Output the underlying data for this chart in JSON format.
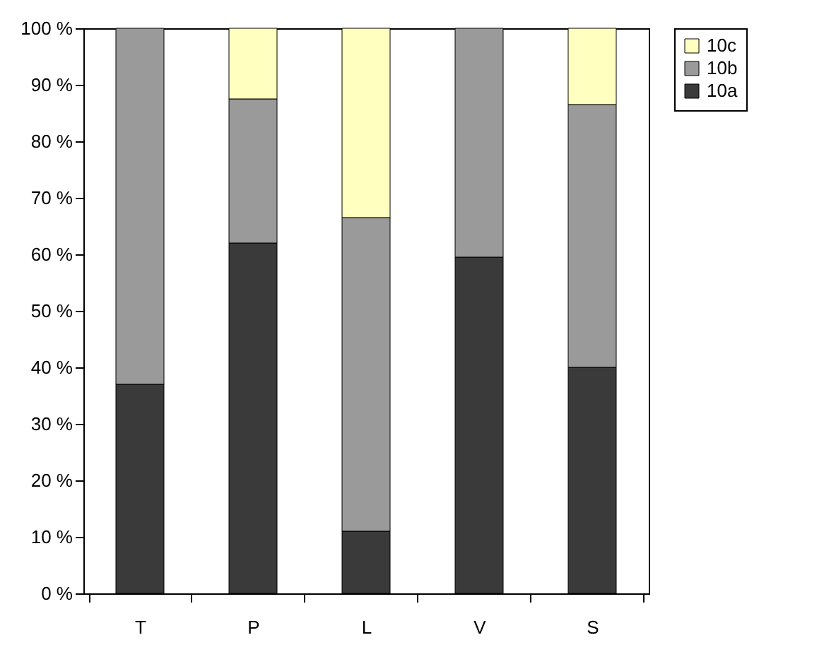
{
  "chart_data": {
    "type": "bar",
    "stacked": true,
    "categories": [
      "T",
      "P",
      "L",
      "V",
      "S"
    ],
    "series": [
      {
        "name": "10a",
        "color": "#3a3a3a",
        "values": [
          37,
          62,
          11,
          59.5,
          40
        ]
      },
      {
        "name": "10b",
        "color": "#9a9a9a",
        "values": [
          63,
          25.5,
          55.5,
          40.5,
          46.5
        ]
      },
      {
        "name": "10c",
        "color": "#ffffc0",
        "values": [
          0,
          12.5,
          33.5,
          0,
          13.5
        ]
      }
    ],
    "ylim": [
      0,
      100
    ],
    "yticks": [
      {
        "value": 0,
        "label": "0 %"
      },
      {
        "value": 10,
        "label": "10 %"
      },
      {
        "value": 20,
        "label": "20 %"
      },
      {
        "value": 30,
        "label": "30 %"
      },
      {
        "value": 40,
        "label": "40 %"
      },
      {
        "value": 50,
        "label": "50 %"
      },
      {
        "value": 60,
        "label": "60 %"
      },
      {
        "value": 70,
        "label": "70 %"
      },
      {
        "value": 80,
        "label": "80 %"
      },
      {
        "value": 90,
        "label": "90 %"
      },
      {
        "value": 100,
        "label": "100 %"
      }
    ],
    "grid": false,
    "legend": "right"
  }
}
